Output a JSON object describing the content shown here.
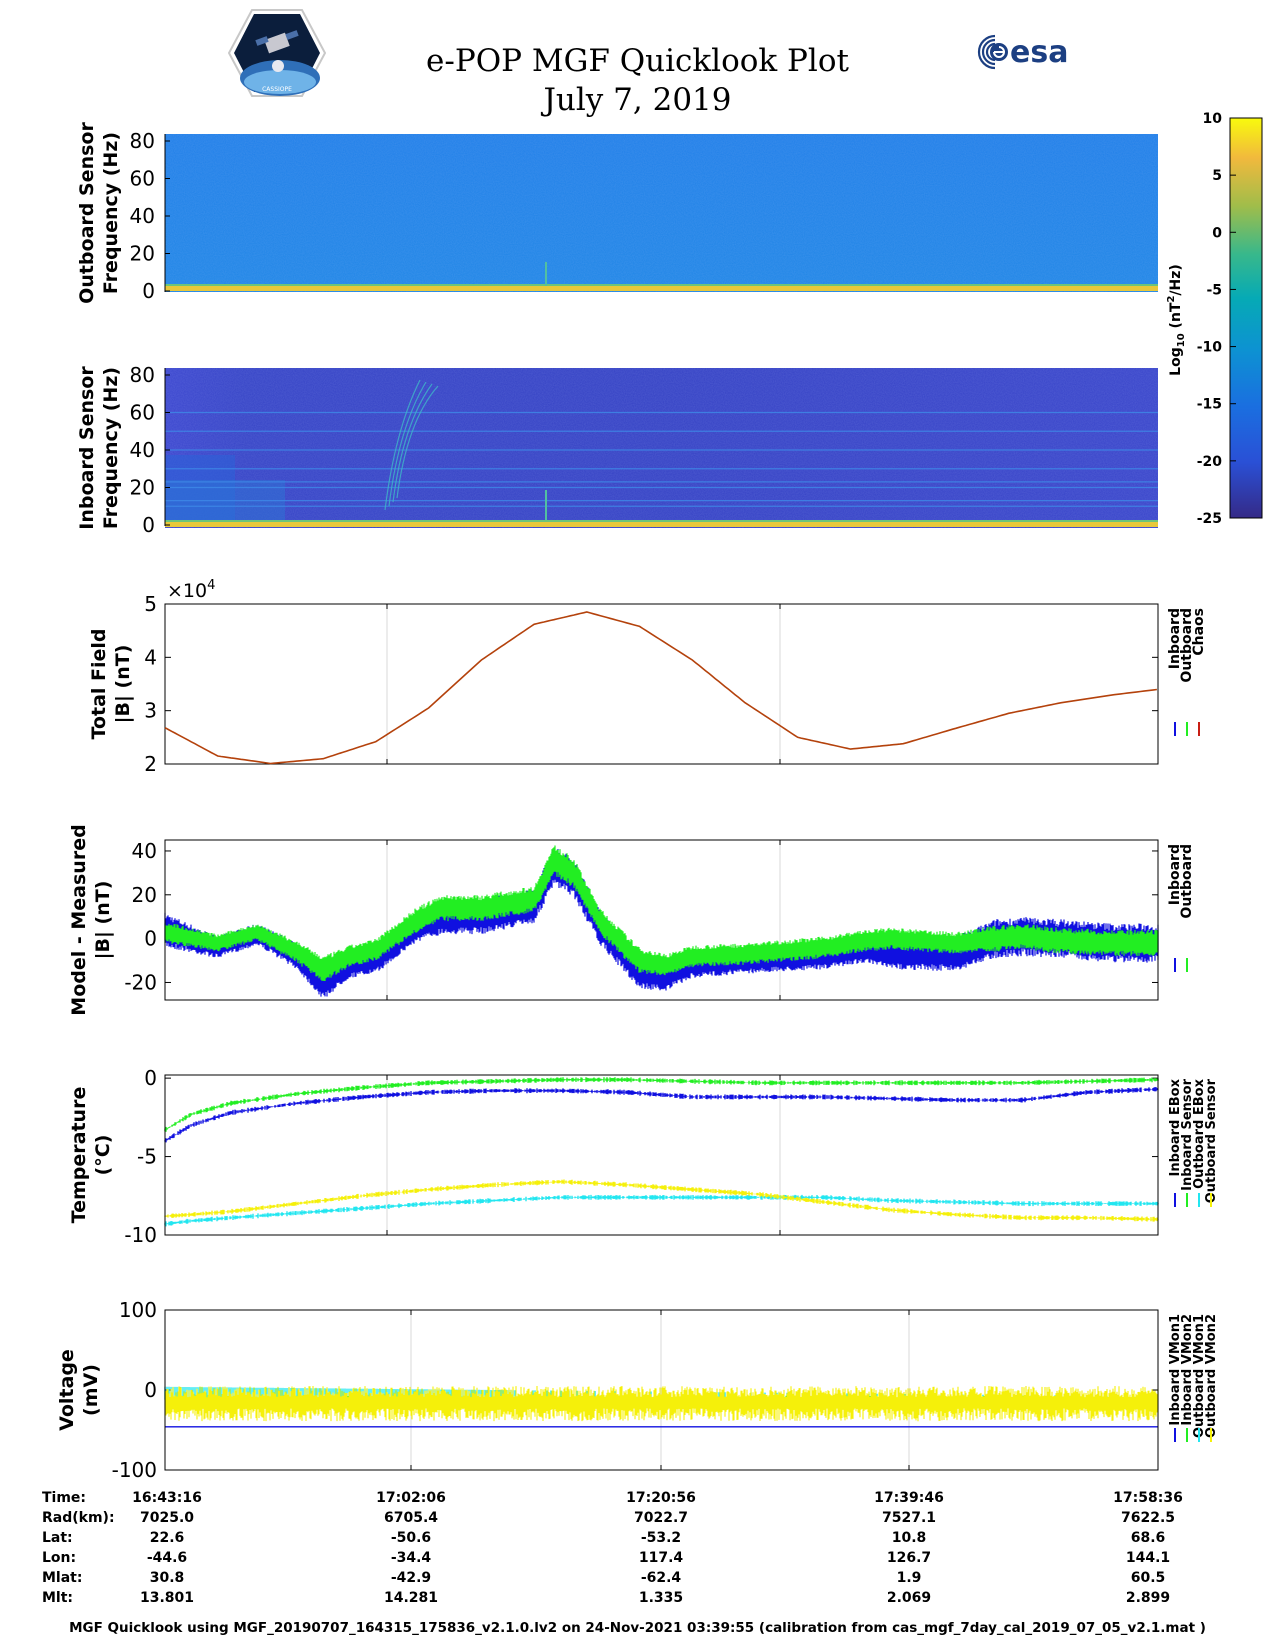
{
  "header": {
    "title": "e-POP MGF Quicklook Plot",
    "date": "July 7, 2019",
    "logo_right_text": "esa",
    "logo_left_text": "CASSIOPE"
  },
  "colors": {
    "inboard": "#1010e0",
    "outboard": "#22ee22",
    "chaos": "#c81e14",
    "cyan": "#22e6f0",
    "yellow": "#f5f00a",
    "total_field_line": "#b4420c"
  },
  "chart_data": [
    {
      "type": "heatmap",
      "name": "outboard_spectrogram",
      "ylabel": [
        "Outboard Sensor",
        "Frequency (Hz)"
      ],
      "ylim": [
        0,
        80
      ],
      "yticks": [
        "0",
        "20",
        "40",
        "60",
        "80"
      ],
      "background_log_psd": -13,
      "low_freq_band_log_psd": 8
    },
    {
      "type": "heatmap",
      "name": "inboard_spectrogram",
      "ylabel": [
        "Inboard Sensor",
        "Frequency (Hz)"
      ],
      "ylim": [
        0,
        80
      ],
      "yticks": [
        "0",
        "20",
        "40",
        "60",
        "80"
      ],
      "background_log_psd": -23,
      "harmonic_line_freqs": [
        10,
        13,
        20,
        23,
        30,
        40,
        50,
        60
      ],
      "low_freq_band_log_psd": 8
    },
    {
      "type": "colorbar",
      "label": "Log10 (nT2/Hz)",
      "label_parts": {
        "pre": "Log",
        "sub": "10",
        "mid": " (nT",
        "sup": "2",
        "post": "/Hz)"
      },
      "range": [
        -25,
        10
      ],
      "ticks": [
        "10",
        "5",
        "0",
        "-5",
        "-10",
        "-15",
        "-20",
        "-25"
      ]
    },
    {
      "type": "line",
      "name": "total_field",
      "ylabel": [
        "Total Field",
        "|B| (nT)"
      ],
      "ylim": [
        2,
        5
      ],
      "yticks": [
        "2",
        "3",
        "4",
        "5"
      ],
      "exponent_label": "×10",
      "exponent_power": "4",
      "x_minutes": [
        0,
        4,
        8,
        12,
        16,
        20,
        24,
        28,
        32,
        36,
        40,
        44,
        48,
        52,
        56,
        60,
        64,
        68,
        72,
        75.33
      ],
      "y": [
        2.68,
        2.15,
        2.01,
        2.1,
        2.42,
        3.05,
        3.95,
        4.62,
        4.85,
        4.58,
        3.95,
        3.15,
        2.5,
        2.28,
        2.38,
        2.67,
        2.95,
        3.15,
        3.3,
        3.4
      ],
      "legend": [
        "Inboard",
        "Outboard",
        "Chaos"
      ]
    },
    {
      "type": "line",
      "name": "model_minus_measured",
      "ylabel": [
        "Model - Measured",
        "|B| (nT)"
      ],
      "ylim": [
        -28,
        45
      ],
      "yticks": [
        "-20",
        "0",
        "20",
        "40"
      ],
      "ytick_values": [
        -20,
        0,
        20,
        40
      ],
      "x_minutes": [
        0,
        4,
        7,
        10,
        12,
        14,
        16,
        19,
        21,
        24,
        28,
        29.5,
        31,
        33,
        36,
        38,
        40,
        44,
        50,
        53,
        55,
        60,
        63,
        65,
        68,
        72,
        75.33
      ],
      "series": [
        {
          "name": "Inboard",
          "center": [
            4,
            -4,
            2,
            -8,
            -20,
            -12,
            -10,
            5,
            10,
            10,
            15,
            33,
            28,
            5,
            -15,
            -17,
            -12,
            -10,
            -8,
            -5,
            -7,
            -7,
            0,
            1,
            0,
            -2,
            -2
          ],
          "spread": [
            8,
            5,
            5,
            6,
            8,
            6,
            6,
            7,
            8,
            8,
            8,
            9,
            9,
            8,
            8,
            7,
            6,
            6,
            6,
            6,
            7,
            8,
            9,
            9,
            9,
            9,
            9
          ]
        },
        {
          "name": "Outboard",
          "center": [
            3,
            -2,
            3,
            -6,
            -14,
            -8,
            -5,
            8,
            14,
            14,
            18,
            36,
            30,
            8,
            -10,
            -12,
            -8,
            -7,
            -4,
            -1,
            0,
            -2,
            0,
            1,
            -1,
            -2,
            -2
          ],
          "spread": [
            5,
            4,
            4,
            5,
            6,
            5,
            5,
            6,
            6,
            6,
            6,
            7,
            7,
            6,
            6,
            5,
            5,
            5,
            5,
            5,
            5,
            5,
            6,
            6,
            6,
            6,
            6
          ]
        }
      ],
      "legend": [
        "Inboard",
        "Outboard"
      ]
    },
    {
      "type": "line",
      "name": "temperature",
      "ylabel": [
        "Temperature",
        "(°C)"
      ],
      "ylim": [
        -10,
        0.2
      ],
      "yticks": [
        "-10",
        "-5",
        "0"
      ],
      "ytick_values": [
        -10,
        -5,
        0
      ],
      "x_minutes": [
        0,
        2,
        5,
        10,
        15,
        20,
        25,
        30,
        35,
        40,
        45,
        50,
        55,
        60,
        65,
        70,
        75.33
      ],
      "series": [
        {
          "name": "Inboard EBox",
          "values": [
            -4.0,
            -3.0,
            -2.2,
            -1.6,
            -1.2,
            -0.9,
            -0.8,
            -0.8,
            -0.9,
            -1.2,
            -1.2,
            -1.2,
            -1.3,
            -1.4,
            -1.4,
            -0.9,
            -0.7
          ]
        },
        {
          "name": "Inboard Sensor",
          "values": [
            -3.3,
            -2.3,
            -1.6,
            -1.0,
            -0.6,
            -0.3,
            -0.2,
            -0.1,
            -0.1,
            -0.2,
            -0.3,
            -0.3,
            -0.3,
            -0.3,
            -0.3,
            -0.2,
            -0.1
          ]
        },
        {
          "name": "Outboard EBox",
          "values": [
            -9.3,
            -9.1,
            -8.9,
            -8.6,
            -8.3,
            -8.0,
            -7.8,
            -7.6,
            -7.6,
            -7.6,
            -7.6,
            -7.6,
            -7.8,
            -7.9,
            -8.0,
            -8.0,
            -8.0
          ]
        },
        {
          "name": "Outboard Sensor",
          "values": [
            -8.8,
            -8.7,
            -8.5,
            -8.0,
            -7.5,
            -7.1,
            -6.8,
            -6.6,
            -6.8,
            -7.1,
            -7.4,
            -7.9,
            -8.4,
            -8.7,
            -8.9,
            -8.9,
            -9.0
          ]
        }
      ],
      "legend": [
        "Inboard EBox",
        "Inboard Sensor",
        "Outboard EBox",
        "Outboard Sensor"
      ]
    },
    {
      "type": "line",
      "name": "voltage",
      "ylabel": [
        "Voltage",
        "(mV)"
      ],
      "ylim": [
        -100,
        100
      ],
      "yticks": [
        "-100",
        "0",
        "100"
      ],
      "ytick_values": [
        -100,
        0,
        100
      ],
      "x_minutes": [
        0,
        75.33
      ],
      "series": [
        {
          "name": "Inboard VMon1",
          "values": [
            -46,
            -46
          ]
        },
        {
          "name": "Inboard VMon2",
          "values": [
            -12,
            -12
          ]
        },
        {
          "name": "Outboard VMon1",
          "values": [
            0,
            -12
          ]
        },
        {
          "name": "Outboard VMon2",
          "values": [
            -15,
            -15
          ]
        }
      ],
      "legend": [
        "Inboard VMon1",
        "Inboard VMon2",
        "Outboard VMon1",
        "Outboard VMon2"
      ]
    }
  ],
  "ephemeris": {
    "row_labels": [
      "Time:",
      "Rad(km):",
      "Lat:",
      "Lon:",
      "Mlat:",
      "Mlt:"
    ],
    "columns": [
      [
        "16:43:16",
        "7025.0",
        "22.6",
        "-44.6",
        "30.8",
        "13.801"
      ],
      [
        "17:02:06",
        "6705.4",
        "-50.6",
        "-34.4",
        "-42.9",
        "14.281"
      ],
      [
        "17:20:56",
        "7022.7",
        "-53.2",
        "117.4",
        "-62.4",
        "1.335"
      ],
      [
        "17:39:46",
        "7527.1",
        "10.8",
        "126.7",
        "1.9",
        "2.069"
      ],
      [
        "17:58:36",
        "7622.5",
        "68.6",
        "144.1",
        "60.5",
        "2.899"
      ]
    ]
  },
  "footer": "MGF Quicklook using MGF_20190707_164315_175836_v2.1.0.lv2 on 24-Nov-2021 03:39:55 (calibration from cas_mgf_7day_cal_2019_07_05_v2.1.mat )"
}
